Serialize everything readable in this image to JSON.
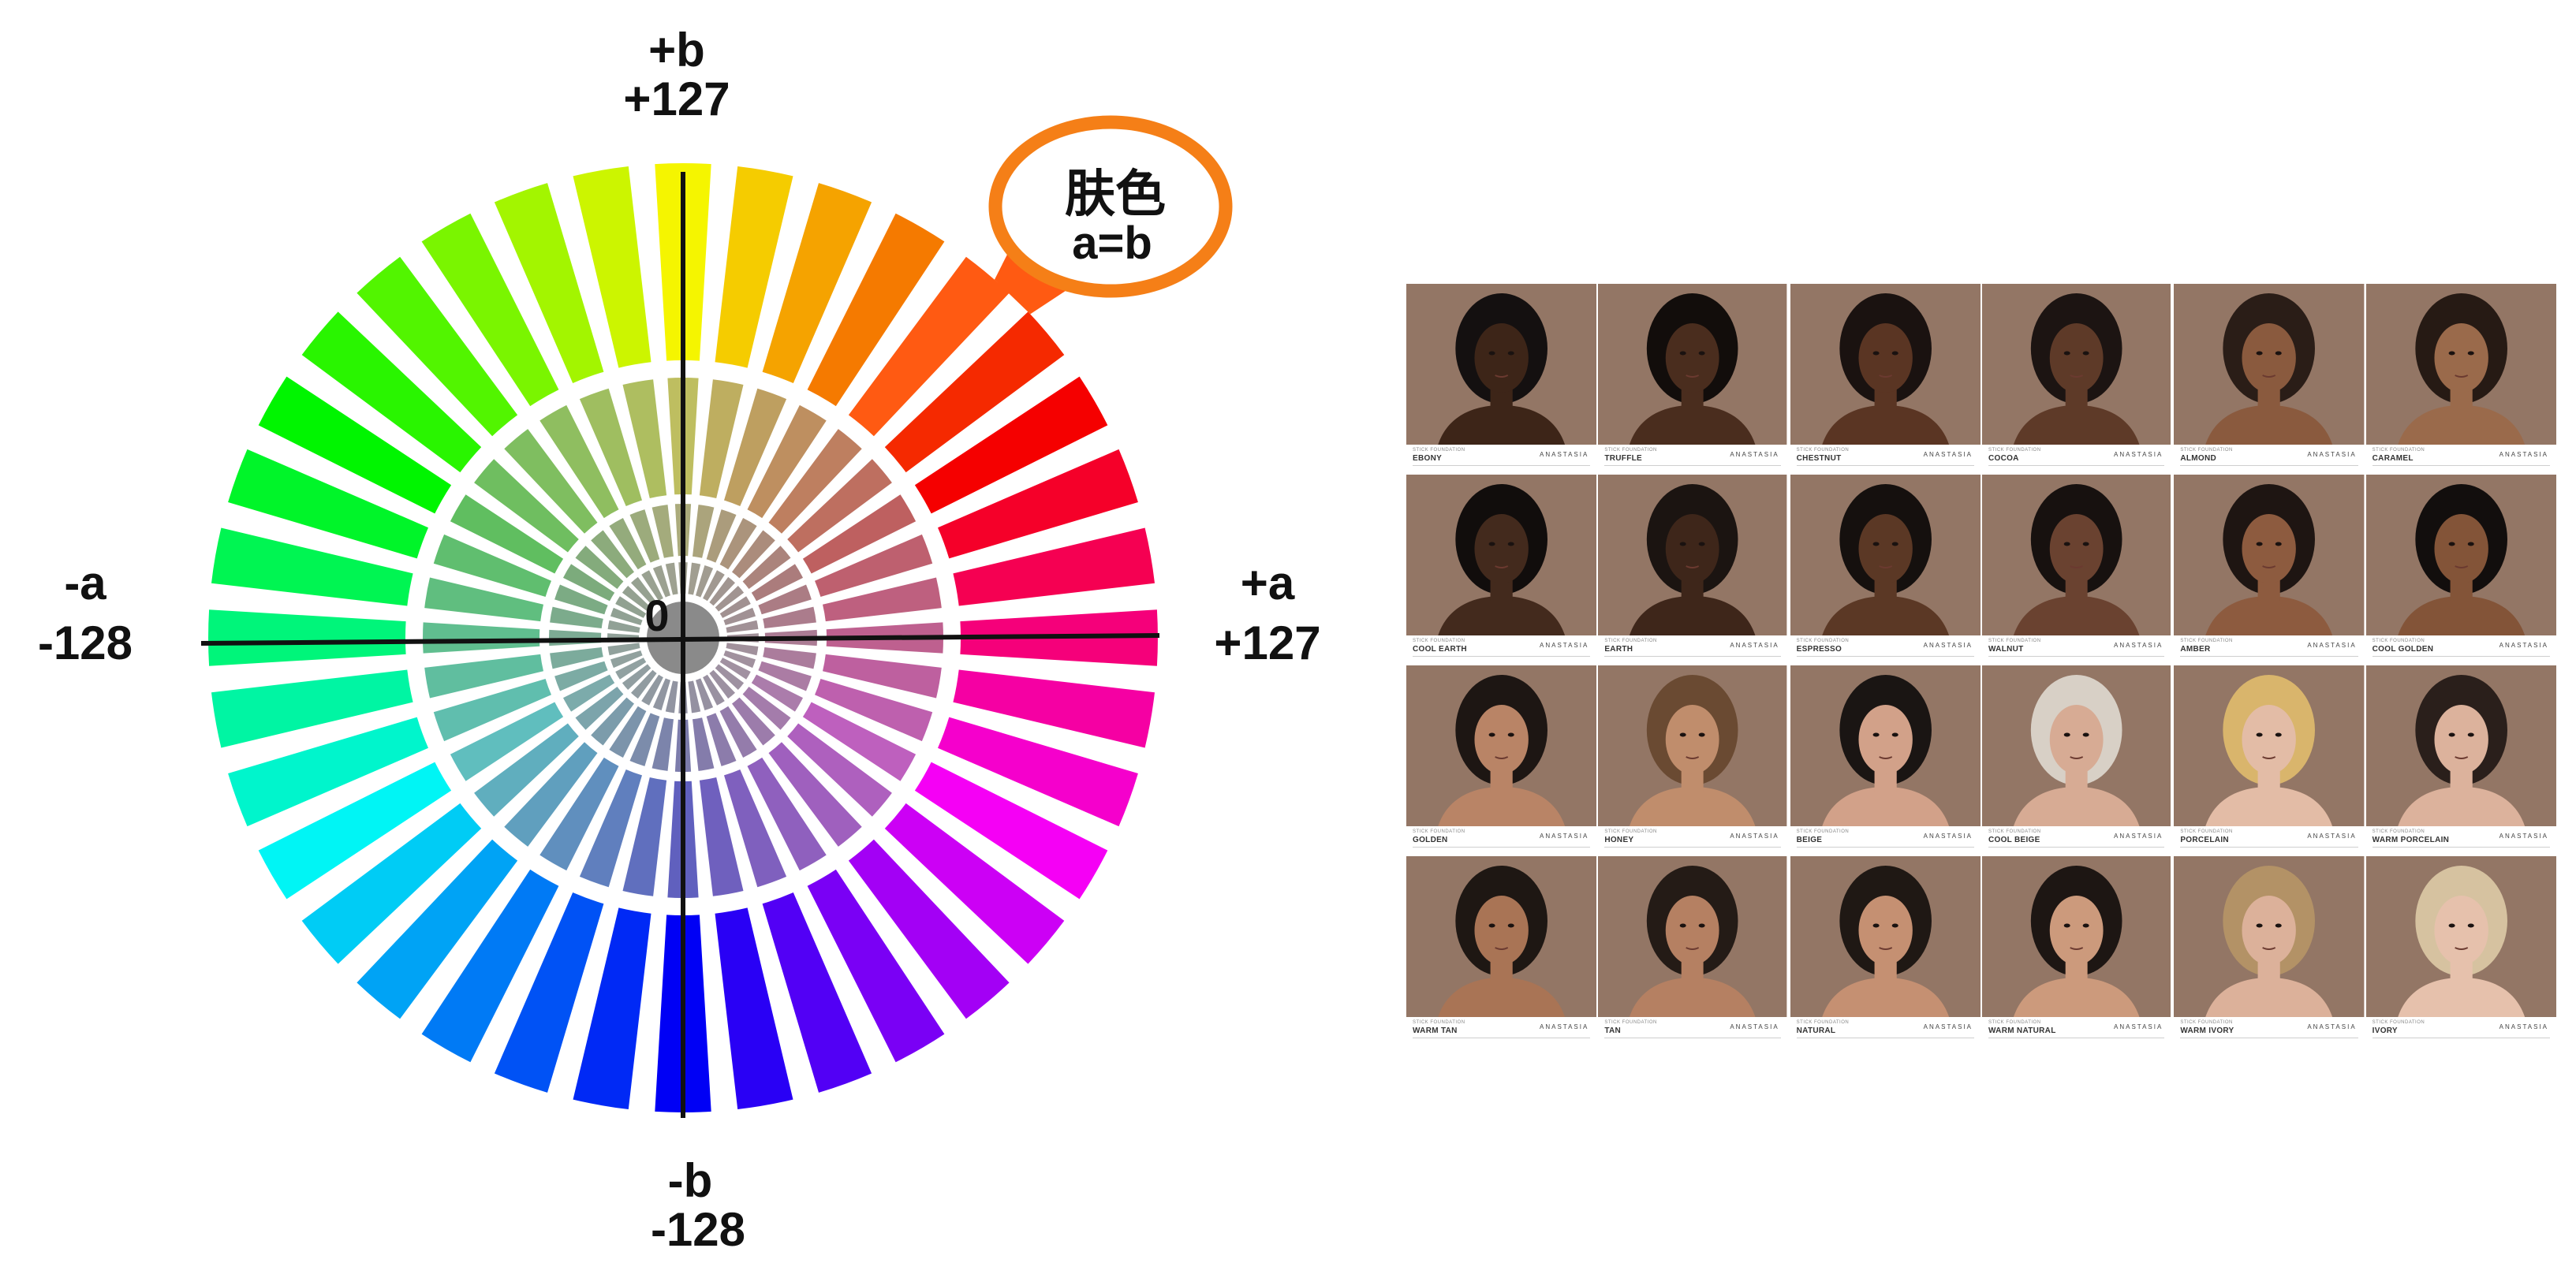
{
  "wheel": {
    "top_label_axis": "+b",
    "top_label_value": "+127",
    "bottom_label_axis": "-b",
    "bottom_label_value": "-128",
    "left_label_axis": "-a",
    "left_label_value": "-128",
    "right_label_axis": "+a",
    "right_label_value": "+127",
    "center_label": "0",
    "callout_title": "肤色",
    "callout_formula": "a=b",
    "callout_color": "#F57F17",
    "skin_segment_color": "#FF5A12"
  },
  "swatches": {
    "caption_small": "STICK FOUNDATION",
    "brand": "ANASTASIA",
    "rows": [
      [
        {
          "name": "EBONY",
          "skin": "#3d2518",
          "hair": "#141010"
        },
        {
          "name": "TRUFFLE",
          "skin": "#4a2d1e",
          "hair": "#120d0b"
        },
        {
          "name": "CHESTNUT",
          "skin": "#5a3523",
          "hair": "#1a1210"
        },
        {
          "name": "COCOA",
          "skin": "#5e3a28",
          "hair": "#1c1412"
        },
        {
          "name": "ALMOND",
          "skin": "#8a5a3e",
          "hair": "#2a1d17"
        },
        {
          "name": "CARAMEL",
          "skin": "#9a6a4b",
          "hair": "#261a14"
        }
      ],
      [
        {
          "name": "COOL EARTH",
          "skin": "#432a1d",
          "hair": "#110d0c"
        },
        {
          "name": "EARTH",
          "skin": "#3e261a",
          "hair": "#1b1411"
        },
        {
          "name": "ESPRESSO",
          "skin": "#5b3825",
          "hair": "#15100e"
        },
        {
          "name": "WALNUT",
          "skin": "#6a4230",
          "hair": "#17110f"
        },
        {
          "name": "AMBER",
          "skin": "#8d5b3f",
          "hair": "#1e1512"
        },
        {
          "name": "COOL GOLDEN",
          "skin": "#835438",
          "hair": "#120e0d"
        }
      ],
      [
        {
          "name": "GOLDEN",
          "skin": "#b98466",
          "hair": "#1d1613"
        },
        {
          "name": "HONEY",
          "skin": "#c08d6c",
          "hair": "#6a4a32"
        },
        {
          "name": "BEIGE",
          "skin": "#d2a189",
          "hair": "#1a1513"
        },
        {
          "name": "COOL BEIGE",
          "skin": "#d7ab94",
          "hair": "#d8d0c6"
        },
        {
          "name": "PORCELAIN",
          "skin": "#e3bca6",
          "hair": "#d9b56c"
        },
        {
          "name": "WARM PORCELAIN",
          "skin": "#dcb29c",
          "hair": "#2a1f1b"
        }
      ],
      [
        {
          "name": "WARM TAN",
          "skin": "#a97455",
          "hair": "#1e1713"
        },
        {
          "name": "TAN",
          "skin": "#b58062",
          "hair": "#241b16"
        },
        {
          "name": "NATURAL",
          "skin": "#c59072",
          "hair": "#1f1814"
        },
        {
          "name": "WARM NATURAL",
          "skin": "#cc9a7c",
          "hair": "#1d1613"
        },
        {
          "name": "WARM IVORY",
          "skin": "#dcb19a",
          "hair": "#b39266"
        },
        {
          "name": "IVORY",
          "skin": "#e6c1ac",
          "hair": "#d6c2a0"
        }
      ]
    ]
  }
}
